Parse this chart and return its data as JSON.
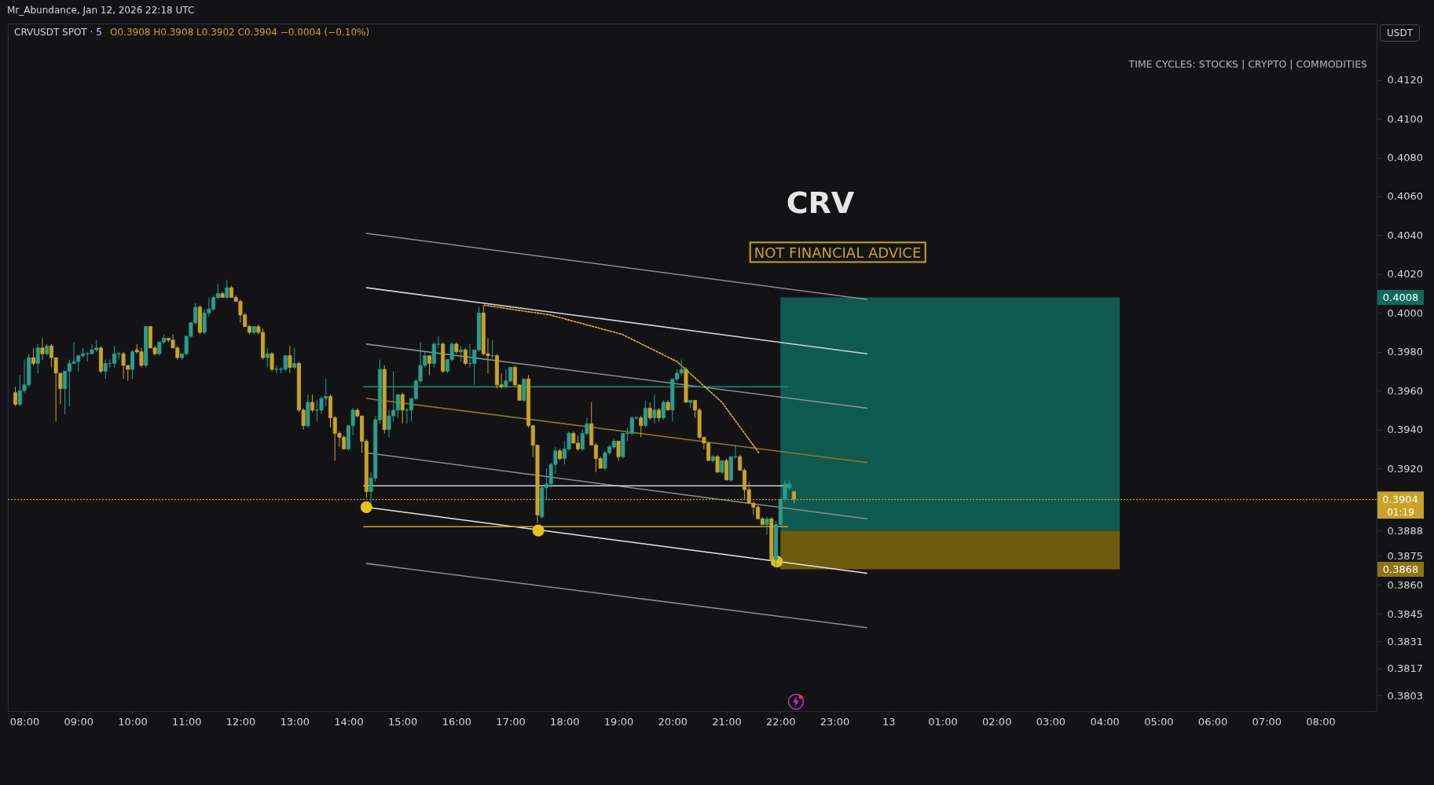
{
  "chart_data": {
    "type": "candlestick",
    "title": "CRVUSDT SPOT · 5",
    "ylabel": "USDT",
    "x": [
      "2026-01-12T07:50",
      "2026-01-12T07:55",
      "2026-01-12T08:00",
      "2026-01-12T08:05",
      "2026-01-12T08:10",
      "2026-01-12T08:15",
      "2026-01-12T08:20",
      "2026-01-12T08:25",
      "2026-01-12T08:30",
      "2026-01-12T08:35",
      "2026-01-12T08:40",
      "2026-01-12T08:45",
      "2026-01-12T08:50",
      "2026-01-12T08:55",
      "2026-01-12T09:00",
      "2026-01-12T09:05",
      "2026-01-12T09:10",
      "2026-01-12T09:15",
      "2026-01-12T09:20",
      "2026-01-12T09:25",
      "2026-01-12T09:30",
      "2026-01-12T09:35",
      "2026-01-12T09:40",
      "2026-01-12T09:45",
      "2026-01-12T09:50",
      "2026-01-12T09:55",
      "2026-01-12T10:00",
      "2026-01-12T10:05",
      "2026-01-12T10:10",
      "2026-01-12T10:15",
      "2026-01-12T10:20",
      "2026-01-12T10:25",
      "2026-01-12T10:30",
      "2026-01-12T10:35",
      "2026-01-12T10:40",
      "2026-01-12T10:45",
      "2026-01-12T10:50",
      "2026-01-12T10:55",
      "2026-01-12T11:00",
      "2026-01-12T11:05",
      "2026-01-12T11:10",
      "2026-01-12T11:15",
      "2026-01-12T11:20",
      "2026-01-12T11:25",
      "2026-01-12T11:30",
      "2026-01-12T11:35",
      "2026-01-12T11:40",
      "2026-01-12T11:45",
      "2026-01-12T11:50",
      "2026-01-12T11:55",
      "2026-01-12T12:00",
      "2026-01-12T12:05",
      "2026-01-12T12:10",
      "2026-01-12T12:15",
      "2026-01-12T12:20",
      "2026-01-12T12:25",
      "2026-01-12T12:30",
      "2026-01-12T12:35",
      "2026-01-12T12:40",
      "2026-01-12T12:45",
      "2026-01-12T12:50",
      "2026-01-12T12:55",
      "2026-01-12T13:00",
      "2026-01-12T13:05",
      "2026-01-12T13:10",
      "2026-01-12T13:15",
      "2026-01-12T13:20",
      "2026-01-12T13:25",
      "2026-01-12T13:30",
      "2026-01-12T13:35",
      "2026-01-12T13:40",
      "2026-01-12T13:45",
      "2026-01-12T13:50",
      "2026-01-12T13:55",
      "2026-01-12T14:00",
      "2026-01-12T14:05",
      "2026-01-12T14:10",
      "2026-01-12T14:15",
      "2026-01-12T14:20",
      "2026-01-12T14:25",
      "2026-01-12T14:30",
      "2026-01-12T14:35",
      "2026-01-12T14:40",
      "2026-01-12T14:45",
      "2026-01-12T14:50",
      "2026-01-12T14:55",
      "2026-01-12T15:00",
      "2026-01-12T15:05",
      "2026-01-12T15:10",
      "2026-01-12T15:15",
      "2026-01-12T15:20",
      "2026-01-12T15:25",
      "2026-01-12T15:30",
      "2026-01-12T15:35",
      "2026-01-12T15:40",
      "2026-01-12T15:45",
      "2026-01-12T15:50",
      "2026-01-12T15:55",
      "2026-01-12T16:00",
      "2026-01-12T16:05",
      "2026-01-12T16:10",
      "2026-01-12T16:15",
      "2026-01-12T16:20",
      "2026-01-12T16:25",
      "2026-01-12T16:30",
      "2026-01-12T16:35",
      "2026-01-12T16:40",
      "2026-01-12T16:45",
      "2026-01-12T16:50",
      "2026-01-12T16:55",
      "2026-01-12T17:00",
      "2026-01-12T17:05",
      "2026-01-12T17:10",
      "2026-01-12T17:15",
      "2026-01-12T17:20",
      "2026-01-12T17:25",
      "2026-01-12T17:30",
      "2026-01-12T17:35",
      "2026-01-12T17:40",
      "2026-01-12T17:45",
      "2026-01-12T17:50",
      "2026-01-12T17:55",
      "2026-01-12T18:00",
      "2026-01-12T18:05",
      "2026-01-12T18:10",
      "2026-01-12T18:15",
      "2026-01-12T18:20",
      "2026-01-12T18:25",
      "2026-01-12T18:30",
      "2026-01-12T18:35",
      "2026-01-12T18:40",
      "2026-01-12T18:45",
      "2026-01-12T18:50",
      "2026-01-12T18:55",
      "2026-01-12T19:00",
      "2026-01-12T19:05",
      "2026-01-12T19:10",
      "2026-01-12T19:15",
      "2026-01-12T19:20",
      "2026-01-12T19:25",
      "2026-01-12T19:30",
      "2026-01-12T19:35",
      "2026-01-12T19:40",
      "2026-01-12T19:45",
      "2026-01-12T19:50",
      "2026-01-12T19:55",
      "2026-01-12T20:00",
      "2026-01-12T20:05",
      "2026-01-12T20:10",
      "2026-01-12T20:15",
      "2026-01-12T20:20",
      "2026-01-12T20:25",
      "2026-01-12T20:30",
      "2026-01-12T20:35",
      "2026-01-12T20:40",
      "2026-01-12T20:45",
      "2026-01-12T20:50",
      "2026-01-12T20:55",
      "2026-01-12T21:00",
      "2026-01-12T21:05",
      "2026-01-12T21:10",
      "2026-01-12T21:15",
      "2026-01-12T21:20",
      "2026-01-12T21:25",
      "2026-01-12T21:30",
      "2026-01-12T21:35",
      "2026-01-12T21:40",
      "2026-01-12T21:45",
      "2026-01-12T21:50",
      "2026-01-12T21:55",
      "2026-01-12T22:00",
      "2026-01-12T22:05",
      "2026-01-12T22:10",
      "2026-01-12T22:15"
    ],
    "ohlc": [
      [
        0.3959,
        0.3962,
        0.3952,
        0.3953
      ],
      [
        0.3953,
        0.3968,
        0.3952,
        0.396
      ],
      [
        0.396,
        0.3976,
        0.3959,
        0.3963
      ],
      [
        0.3963,
        0.3979,
        0.3962,
        0.3977
      ],
      [
        0.3977,
        0.3982,
        0.3973,
        0.3974
      ],
      [
        0.3974,
        0.3984,
        0.3969,
        0.3982
      ],
      [
        0.3982,
        0.3987,
        0.3976,
        0.3979
      ],
      [
        0.3979,
        0.3984,
        0.3978,
        0.3983
      ],
      [
        0.3983,
        0.3984,
        0.3972,
        0.3977
      ],
      [
        0.3977,
        0.3977,
        0.3944,
        0.3969
      ],
      [
        0.3969,
        0.3969,
        0.3953,
        0.3961
      ],
      [
        0.3961,
        0.397,
        0.3948,
        0.397
      ],
      [
        0.397,
        0.3976,
        0.3952,
        0.3974
      ],
      [
        0.3974,
        0.3985,
        0.3974,
        0.3975
      ],
      [
        0.3975,
        0.3978,
        0.397,
        0.3978
      ],
      [
        0.3978,
        0.3982,
        0.3977,
        0.3979
      ],
      [
        0.3979,
        0.398,
        0.3975,
        0.3979
      ],
      [
        0.3979,
        0.3984,
        0.3979,
        0.3981
      ],
      [
        0.3981,
        0.3986,
        0.398,
        0.3982
      ],
      [
        0.3982,
        0.3983,
        0.3969,
        0.397
      ],
      [
        0.397,
        0.3976,
        0.3966,
        0.3974
      ],
      [
        0.3974,
        0.3976,
        0.3972,
        0.3974
      ],
      [
        0.3974,
        0.3983,
        0.3972,
        0.3979
      ],
      [
        0.3979,
        0.398,
        0.3976,
        0.3979
      ],
      [
        0.3979,
        0.398,
        0.3966,
        0.3973
      ],
      [
        0.3973,
        0.3973,
        0.3965,
        0.3971
      ],
      [
        0.3971,
        0.3981,
        0.3966,
        0.398
      ],
      [
        0.3981,
        0.3984,
        0.3979,
        0.398
      ],
      [
        0.398,
        0.3982,
        0.3972,
        0.3973
      ],
      [
        0.3973,
        0.3993,
        0.3972,
        0.3993
      ],
      [
        0.3993,
        0.3993,
        0.3982,
        0.3982
      ],
      [
        0.3982,
        0.3983,
        0.3978,
        0.3979
      ],
      [
        0.3979,
        0.3985,
        0.3978,
        0.3985
      ],
      [
        0.3985,
        0.3989,
        0.3984,
        0.3987
      ],
      [
        0.3987,
        0.3987,
        0.3985,
        0.3986
      ],
      [
        0.3986,
        0.3989,
        0.3982,
        0.3982
      ],
      [
        0.3982,
        0.3983,
        0.3976,
        0.3977
      ],
      [
        0.3977,
        0.3979,
        0.3976,
        0.3979
      ],
      [
        0.3979,
        0.3988,
        0.3978,
        0.3988
      ],
      [
        0.3988,
        0.3995,
        0.3987,
        0.3995
      ],
      [
        0.3995,
        0.4005,
        0.3994,
        0.4003
      ],
      [
        0.4003,
        0.4004,
        0.3989,
        0.399
      ],
      [
        0.399,
        0.4002,
        0.3989,
        0.4
      ],
      [
        0.4,
        0.4008,
        0.3998,
        0.4002
      ],
      [
        0.4002,
        0.4009,
        0.4001,
        0.4008
      ],
      [
        0.4008,
        0.4015,
        0.4007,
        0.401
      ],
      [
        0.401,
        0.4011,
        0.4008,
        0.4008
      ],
      [
        0.4008,
        0.4017,
        0.4007,
        0.4013
      ],
      [
        0.4013,
        0.4014,
        0.4008,
        0.4008
      ],
      [
        0.4008,
        0.4009,
        0.4006,
        0.4006
      ],
      [
        0.4006,
        0.4007,
        0.3995,
        0.3999
      ],
      [
        0.3999,
        0.4,
        0.3993,
        0.3993
      ],
      [
        0.3993,
        0.3994,
        0.3989,
        0.399
      ],
      [
        0.399,
        0.3993,
        0.3989,
        0.3993
      ],
      [
        0.3993,
        0.3994,
        0.3989,
        0.399
      ],
      [
        0.399,
        0.3992,
        0.3976,
        0.3977
      ],
      [
        0.3977,
        0.3982,
        0.3972,
        0.3979
      ],
      [
        0.3979,
        0.398,
        0.397,
        0.3971
      ],
      [
        0.3971,
        0.3973,
        0.3969,
        0.3971
      ],
      [
        0.3971,
        0.3972,
        0.3969,
        0.3971
      ],
      [
        0.3971,
        0.3978,
        0.397,
        0.3978
      ],
      [
        0.3978,
        0.3983,
        0.3969,
        0.3972
      ],
      [
        0.3972,
        0.3982,
        0.3971,
        0.3974
      ],
      [
        0.3974,
        0.3975,
        0.3949,
        0.395
      ],
      [
        0.395,
        0.3951,
        0.394,
        0.3942
      ],
      [
        0.3942,
        0.3958,
        0.3941,
        0.3954
      ],
      [
        0.3954,
        0.3958,
        0.3949,
        0.395
      ],
      [
        0.395,
        0.3955,
        0.3944,
        0.395
      ],
      [
        0.395,
        0.3957,
        0.3948,
        0.3956
      ],
      [
        0.3956,
        0.3966,
        0.3952,
        0.3957
      ],
      [
        0.3957,
        0.3958,
        0.3941,
        0.3946
      ],
      [
        0.3946,
        0.3947,
        0.3924,
        0.3938
      ],
      [
        0.3938,
        0.3939,
        0.3931,
        0.3936
      ],
      [
        0.3936,
        0.3937,
        0.393,
        0.393
      ],
      [
        0.393,
        0.3942,
        0.3929,
        0.3942
      ],
      [
        0.3942,
        0.3951,
        0.3937,
        0.395
      ],
      [
        0.395,
        0.3951,
        0.3946,
        0.3947
      ],
      [
        0.3947,
        0.3947,
        0.3928,
        0.3934
      ],
      [
        0.3934,
        0.3935,
        0.3905,
        0.3908
      ],
      [
        0.3908,
        0.3918,
        0.3902,
        0.3915
      ],
      [
        0.3915,
        0.3947,
        0.3913,
        0.3945
      ],
      [
        0.3945,
        0.3976,
        0.3943,
        0.3971
      ],
      [
        0.3971,
        0.3973,
        0.3938,
        0.394
      ],
      [
        0.394,
        0.395,
        0.3936,
        0.3947
      ],
      [
        0.3947,
        0.397,
        0.3944,
        0.395
      ],
      [
        0.395,
        0.3958,
        0.3946,
        0.3958
      ],
      [
        0.3958,
        0.3959,
        0.3943,
        0.395
      ],
      [
        0.395,
        0.3951,
        0.3943,
        0.395
      ],
      [
        0.395,
        0.3956,
        0.3944,
        0.3956
      ],
      [
        0.3956,
        0.3966,
        0.3955,
        0.3965
      ],
      [
        0.3965,
        0.3985,
        0.3964,
        0.3973
      ],
      [
        0.3973,
        0.398,
        0.3972,
        0.3978
      ],
      [
        0.3978,
        0.3978,
        0.3968,
        0.3974
      ],
      [
        0.3974,
        0.3985,
        0.3972,
        0.3984
      ],
      [
        0.3984,
        0.3988,
        0.3982,
        0.3984
      ],
      [
        0.3984,
        0.3985,
        0.3969,
        0.397
      ],
      [
        0.397,
        0.3976,
        0.3969,
        0.3976
      ],
      [
        0.3976,
        0.3985,
        0.3975,
        0.3984
      ],
      [
        0.3984,
        0.3985,
        0.3979,
        0.398
      ],
      [
        0.398,
        0.3983,
        0.3975,
        0.3981
      ],
      [
        0.3981,
        0.3982,
        0.3973,
        0.3974
      ],
      [
        0.3974,
        0.3984,
        0.3972,
        0.3974
      ],
      [
        0.3974,
        0.3981,
        0.3963,
        0.3981
      ],
      [
        0.3981,
        0.4003,
        0.398,
        0.4
      ],
      [
        0.4,
        0.4004,
        0.3978,
        0.3979
      ],
      [
        0.3979,
        0.3987,
        0.3969,
        0.3978
      ],
      [
        0.3978,
        0.3986,
        0.3976,
        0.3978
      ],
      [
        0.3978,
        0.3979,
        0.3961,
        0.3963
      ],
      [
        0.3963,
        0.3969,
        0.3961,
        0.3962
      ],
      [
        0.3962,
        0.3971,
        0.3961,
        0.3965
      ],
      [
        0.3965,
        0.3972,
        0.3964,
        0.3972
      ],
      [
        0.3972,
        0.3973,
        0.3962,
        0.3963
      ],
      [
        0.3963,
        0.3963,
        0.3955,
        0.3955
      ],
      [
        0.3955,
        0.3966,
        0.3954,
        0.3966
      ],
      [
        0.3966,
        0.3968,
        0.3941,
        0.3942
      ],
      [
        0.3942,
        0.3942,
        0.3926,
        0.3932
      ],
      [
        0.3932,
        0.3932,
        0.3892,
        0.3896
      ],
      [
        0.3895,
        0.3911,
        0.3894,
        0.391
      ],
      [
        0.391,
        0.392,
        0.3904,
        0.3912
      ],
      [
        0.3912,
        0.3923,
        0.391,
        0.3922
      ],
      [
        0.3922,
        0.3931,
        0.3917,
        0.3929
      ],
      [
        0.3929,
        0.393,
        0.3924,
        0.3925
      ],
      [
        0.3925,
        0.3934,
        0.3922,
        0.393
      ],
      [
        0.393,
        0.3939,
        0.3929,
        0.3938
      ],
      [
        0.3938,
        0.3939,
        0.3933,
        0.3933
      ],
      [
        0.3933,
        0.3937,
        0.3929,
        0.393
      ],
      [
        0.393,
        0.394,
        0.3929,
        0.3938
      ],
      [
        0.3938,
        0.3946,
        0.3937,
        0.3943
      ],
      [
        0.3943,
        0.3954,
        0.3932,
        0.3932
      ],
      [
        0.3932,
        0.3933,
        0.3918,
        0.3925
      ],
      [
        0.3925,
        0.3926,
        0.392,
        0.392
      ],
      [
        0.392,
        0.3929,
        0.3919,
        0.3928
      ],
      [
        0.3928,
        0.3932,
        0.3927,
        0.3931
      ],
      [
        0.3931,
        0.3935,
        0.393,
        0.3934
      ],
      [
        0.3934,
        0.3934,
        0.3924,
        0.3926
      ],
      [
        0.3926,
        0.3938,
        0.3925,
        0.3938
      ],
      [
        0.3938,
        0.3941,
        0.3934,
        0.3938
      ],
      [
        0.3938,
        0.3947,
        0.3937,
        0.3946
      ],
      [
        0.3946,
        0.3947,
        0.3945,
        0.3946
      ],
      [
        0.3946,
        0.3947,
        0.3936,
        0.3942
      ],
      [
        0.3942,
        0.3955,
        0.3941,
        0.3951
      ],
      [
        0.3951,
        0.3954,
        0.3945,
        0.3946
      ],
      [
        0.3946,
        0.3958,
        0.3943,
        0.395
      ],
      [
        0.395,
        0.3951,
        0.3944,
        0.3946
      ],
      [
        0.3946,
        0.3955,
        0.3945,
        0.3954
      ],
      [
        0.3954,
        0.3955,
        0.395,
        0.395
      ],
      [
        0.395,
        0.3966,
        0.3944,
        0.3966
      ],
      [
        0.3966,
        0.3971,
        0.3965,
        0.3969
      ],
      [
        0.3969,
        0.3976,
        0.3968,
        0.3971
      ],
      [
        0.3971,
        0.3972,
        0.3954,
        0.3954
      ],
      [
        0.3954,
        0.3955,
        0.3951,
        0.3955
      ],
      [
        0.3955,
        0.3955,
        0.3946,
        0.395
      ],
      [
        0.395,
        0.3951,
        0.3935,
        0.3936
      ],
      [
        0.3936,
        0.3936,
        0.393,
        0.3933
      ],
      [
        0.3933,
        0.3933,
        0.3924,
        0.3924
      ],
      [
        0.3924,
        0.3927,
        0.3923,
        0.3926
      ],
      [
        0.3926,
        0.3927,
        0.3918,
        0.3918
      ],
      [
        0.3918,
        0.3924,
        0.3917,
        0.3924
      ],
      [
        0.3924,
        0.3925,
        0.3914,
        0.3914
      ],
      [
        0.3914,
        0.3926,
        0.3913,
        0.3926
      ],
      [
        0.3926,
        0.3932,
        0.3925,
        0.3926
      ],
      [
        0.3926,
        0.3927,
        0.3919,
        0.3919
      ],
      [
        0.3919,
        0.392,
        0.3904,
        0.3909
      ],
      [
        0.3909,
        0.3913,
        0.3902,
        0.3902
      ],
      [
        0.3902,
        0.3903,
        0.3896,
        0.39
      ],
      [
        0.39,
        0.3901,
        0.3894,
        0.3894
      ],
      [
        0.3894,
        0.3895,
        0.3891,
        0.3891
      ],
      [
        0.3891,
        0.3895,
        0.3886,
        0.3894
      ],
      [
        0.3894,
        0.3895,
        0.387,
        0.3873
      ],
      [
        0.3873,
        0.3893,
        0.3869,
        0.3891
      ],
      [
        0.3891,
        0.3905,
        0.389,
        0.3904
      ],
      [
        0.3904,
        0.3914,
        0.3903,
        0.3912
      ],
      [
        0.391,
        0.3914,
        0.3909,
        0.3912
      ],
      [
        0.3908,
        0.3908,
        0.3902,
        0.3904
      ]
    ],
    "colors": [
      "#c9a227",
      "#2a9d8f",
      "#2a9d8f",
      "#2a9d8f",
      "#c9a227",
      "#2a9d8f",
      "#c9a227",
      "#2a9d8f",
      "#c9a227",
      "#c9a227",
      "#c9a227",
      "#2a9d8f",
      "#2a9d8f",
      "#2a9d8f",
      "#2a9d8f",
      "#2a9d8f",
      "#2a9d8f",
      "#2a9d8f",
      "#2a9d8f",
      "#c9a227",
      "#2a9d8f",
      "#2a9d8f",
      "#2a9d8f",
      "#2a9d8f",
      "#c9a227",
      "#c9a227",
      "#2a9d8f",
      "#c9a227",
      "#c9a227",
      "#2a9d8f",
      "#c9a227",
      "#c9a227",
      "#2a9d8f",
      "#2a9d8f",
      "#c9a227",
      "#c9a227",
      "#c9a227",
      "#2a9d8f",
      "#2a9d8f",
      "#2a9d8f",
      "#2a9d8f",
      "#c9a227",
      "#2a9d8f",
      "#2a9d8f",
      "#2a9d8f",
      "#2a9d8f",
      "#c9a227",
      "#2a9d8f",
      "#c9a227",
      "#c9a227",
      "#c9a227",
      "#c9a227",
      "#c9a227",
      "#2a9d8f",
      "#c9a227",
      "#c9a227",
      "#2a9d8f",
      "#c9a227",
      "#2a9d8f",
      "#2a9d8f",
      "#2a9d8f",
      "#c9a227",
      "#2a9d8f",
      "#c9a227",
      "#c9a227",
      "#2a9d8f",
      "#c9a227",
      "#2a9d8f",
      "#2a9d8f",
      "#2a9d8f",
      "#c9a227",
      "#c9a227",
      "#c9a227",
      "#c9a227",
      "#2a9d8f",
      "#2a9d8f",
      "#c9a227",
      "#c9a227",
      "#c9a227",
      "#2a9d8f",
      "#2a9d8f",
      "#2a9d8f",
      "#c9a227",
      "#2a9d8f",
      "#2a9d8f",
      "#2a9d8f",
      "#c9a227",
      "#2a9d8f",
      "#2a9d8f",
      "#2a9d8f",
      "#2a9d8f",
      "#2a9d8f",
      "#c9a227",
      "#2a9d8f",
      "#2a9d8f",
      "#c9a227",
      "#2a9d8f",
      "#2a9d8f",
      "#c9a227",
      "#2a9d8f",
      "#c9a227",
      "#2a9d8f",
      "#2a9d8f",
      "#2a9d8f",
      "#c9a227",
      "#c9a227",
      "#2a9d8f",
      "#c9a227",
      "#c9a227",
      "#2a9d8f",
      "#2a9d8f",
      "#c9a227",
      "#c9a227",
      "#2a9d8f",
      "#c9a227",
      "#c9a227",
      "#c9a227",
      "#2a9d8f",
      "#2a9d8f",
      "#2a9d8f",
      "#2a9d8f",
      "#c9a227",
      "#2a9d8f",
      "#2a9d8f",
      "#c9a227",
      "#c9a227",
      "#2a9d8f",
      "#2a9d8f",
      "#c9a227",
      "#c9a227",
      "#c9a227",
      "#2a9d8f",
      "#2a9d8f",
      "#2a9d8f",
      "#c9a227",
      "#2a9d8f",
      "#2a9d8f",
      "#2a9d8f",
      "#2a9d8f",
      "#c9a227",
      "#2a9d8f",
      "#c9a227",
      "#2a9d8f",
      "#c9a227",
      "#2a9d8f",
      "#c9a227",
      "#2a9d8f",
      "#2a9d8f",
      "#2a9d8f",
      "#c9a227",
      "#2a9d8f",
      "#c9a227",
      "#c9a227",
      "#c9a227",
      "#c9a227",
      "#2a9d8f",
      "#c9a227",
      "#2a9d8f",
      "#c9a227",
      "#2a9d8f",
      "#2a9d8f",
      "#c9a227",
      "#c9a227",
      "#c9a227",
      "#c9a227",
      "#c9a227",
      "#c9a227",
      "#2a9d8f",
      "#c9a227",
      "#2a9d8f",
      "#2a9d8f",
      "#2a9d8f",
      "#2a9d8f",
      "#c9a227"
    ],
    "xlim": [
      "2026-01-12T07:46",
      "2026-01-13T08:58"
    ],
    "ylim": [
      0.3795,
      0.4149
    ],
    "xticks": [
      {
        "value": "2026-01-12T08:00",
        "label": "08:00"
      },
      {
        "value": "2026-01-12T09:00",
        "label": "09:00"
      },
      {
        "value": "2026-01-12T10:00",
        "label": "10:00"
      },
      {
        "value": "2026-01-12T11:00",
        "label": "11:00"
      },
      {
        "value": "2026-01-12T12:00",
        "label": "12:00"
      },
      {
        "value": "2026-01-12T13:00",
        "label": "13:00"
      },
      {
        "value": "2026-01-12T14:00",
        "label": "14:00"
      },
      {
        "value": "2026-01-12T15:00",
        "label": "15:00"
      },
      {
        "value": "2026-01-12T16:00",
        "label": "16:00"
      },
      {
        "value": "2026-01-12T17:00",
        "label": "17:00"
      },
      {
        "value": "2026-01-12T18:00",
        "label": "18:00"
      },
      {
        "value": "2026-01-12T19:00",
        "label": "19:00"
      },
      {
        "value": "2026-01-12T20:00",
        "label": "20:00"
      },
      {
        "value": "2026-01-12T21:00",
        "label": "21:00"
      },
      {
        "value": "2026-01-12T22:00",
        "label": "22:00"
      },
      {
        "value": "2026-01-12T23:00",
        "label": "23:00"
      },
      {
        "value": "2026-01-13T00:00",
        "label": "13"
      },
      {
        "value": "2026-01-13T01:00",
        "label": "01:00"
      },
      {
        "value": "2026-01-13T02:00",
        "label": "02:00"
      },
      {
        "value": "2026-01-13T03:00",
        "label": "03:00"
      },
      {
        "value": "2026-01-13T04:00",
        "label": "04:00"
      },
      {
        "value": "2026-01-13T05:00",
        "label": "05:00"
      },
      {
        "value": "2026-01-13T06:00",
        "label": "06:00"
      },
      {
        "value": "2026-01-13T07:00",
        "label": "07:00"
      },
      {
        "value": "2026-01-13T08:00",
        "label": "08:00"
      }
    ],
    "yticks": [
      {
        "value": 0.412,
        "label": "0.4120"
      },
      {
        "value": 0.41,
        "label": "0.4100"
      },
      {
        "value": 0.408,
        "label": "0.4080"
      },
      {
        "value": 0.406,
        "label": "0.4060"
      },
      {
        "value": 0.404,
        "label": "0.4040"
      },
      {
        "value": 0.402,
        "label": "0.4020"
      },
      {
        "value": 0.4,
        "label": "0.4000"
      },
      {
        "value": 0.398,
        "label": "0.3980"
      },
      {
        "value": 0.396,
        "label": "0.3960"
      },
      {
        "value": 0.394,
        "label": "0.3940"
      },
      {
        "value": 0.392,
        "label": "0.3920"
      },
      0.3888,
      0.3875,
      {
        "value": 0.386,
        "label": "0.3860"
      },
      0.3845,
      0.3831,
      0.3817,
      0.3803
    ],
    "series": [
      {
        "type": "line",
        "color": "#0e5a50",
        "x": [
          "2026-01-12T22:00",
          "2026-01-13T04:17"
        ],
        "values": [
          null,
          null
        ],
        "upper": [
          0.4008,
          0.4008
        ],
        "lower": [
          0.3888,
          0.3888
        ]
      },
      {
        "type": "line",
        "color": "#6f5a0e",
        "x": [
          "2026-01-12T22:00",
          "2026-01-13T04:17"
        ],
        "values": [
          null,
          null
        ],
        "upper": [
          0.3888,
          0.3888
        ],
        "lower": [
          0.3868,
          0.3868
        ]
      },
      {
        "type": "line",
        "color": "#8a8d94",
        "x": [
          "2026-01-12T14:20",
          "2026-01-12T23:36"
        ],
        "values": [
          0.4041,
          0.4007
        ]
      },
      {
        "type": "line",
        "color": "#d0d3d8",
        "x": [
          "2026-01-12T14:20",
          "2026-01-12T23:36"
        ],
        "values": [
          0.4013,
          0.3979
        ]
      },
      {
        "type": "line",
        "color": "#8a8d94",
        "x": [
          "2026-01-12T14:20",
          "2026-01-12T23:36"
        ],
        "values": [
          0.3984,
          0.3951
        ]
      },
      {
        "type": "line",
        "color": "#8a7423",
        "x": [
          "2026-01-12T14:20",
          "2026-01-12T23:36"
        ],
        "values": [
          0.3956,
          0.3923
        ]
      },
      {
        "type": "line",
        "color": "#8a8d94",
        "x": [
          "2026-01-12T14:20",
          "2026-01-12T23:36"
        ],
        "values": [
          0.3928,
          0.3894
        ]
      },
      {
        "type": "line",
        "color": "#e8e8ea",
        "x": [
          "2026-01-12T14:20",
          "2026-01-12T23:36"
        ],
        "values": [
          0.39,
          0.3866
        ]
      },
      {
        "type": "line",
        "color": "#8a8d94",
        "x": [
          "2026-01-12T14:20",
          "2026-01-12T23:36"
        ],
        "values": [
          0.3871,
          0.3838
        ]
      },
      {
        "type": "line",
        "color": "#1f8c78",
        "x": [
          "2026-01-12T14:17",
          "2026-01-12T22:08"
        ],
        "values": [
          0.3962,
          0.3962
        ]
      },
      {
        "type": "line",
        "color": "#cfd1d6",
        "x": [
          "2026-01-12T14:17",
          "2026-01-12T22:08"
        ],
        "values": [
          0.3911,
          0.3911
        ]
      },
      {
        "type": "line",
        "color": "#c9a227",
        "x": [
          "2026-01-12T14:17",
          "2026-01-12T22:08"
        ],
        "values": [
          0.389,
          0.389
        ]
      },
      {
        "type": "line",
        "color": "#e2b52a",
        "line_style": "dotted",
        "x": [
          "2026-01-12T16:31",
          "2026-01-12T17:44",
          "2026-01-12T19:04",
          "2026-01-12T20:05",
          "2026-01-12T20:55",
          "2026-01-12T21:36"
        ],
        "values": [
          0.4004,
          0.3999,
          0.3989,
          0.3975,
          0.3954,
          0.3928
        ]
      },
      {
        "type": "scatter",
        "color": "#e3c21a",
        "marker": "circle",
        "x": [
          "2026-01-12T14:20",
          "2026-01-12T17:31",
          "2026-01-12T21:56"
        ],
        "values": [
          0.39,
          0.3888,
          0.3872
        ]
      }
    ],
    "ref_lines": [
      {
        "axis": "y",
        "value": 0.3904,
        "label": "0.3904",
        "color": "#c9a227",
        "line_style": "dotted"
      }
    ],
    "annotations": [
      "Mr_Abundance, Jan 12, 2026 22:18 UTC",
      "O0.3908 H0.3908 L0.3902 C0.3904 −0.0004 (−0.10%)",
      "CRV",
      "NOT FINANCIAL ADVICE",
      "TIME CYCLES: STOCKS | CRYPTO | COMMODITIES",
      "01:19",
      "0.4008",
      "0.3868"
    ]
  }
}
